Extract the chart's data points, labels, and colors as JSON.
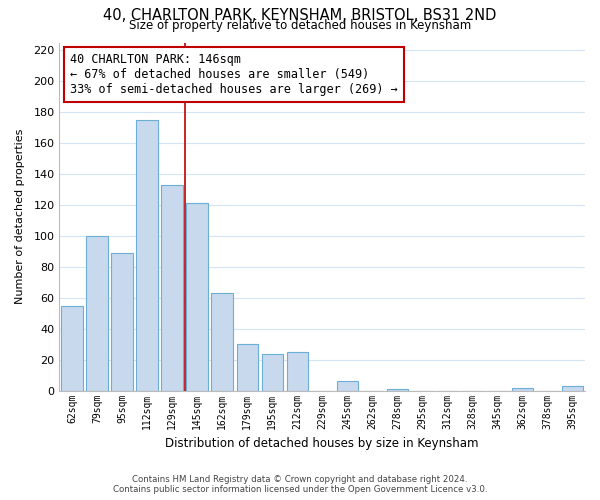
{
  "title_line1": "40, CHARLTON PARK, KEYNSHAM, BRISTOL, BS31 2ND",
  "title_line2": "Size of property relative to detached houses in Keynsham",
  "xlabel": "Distribution of detached houses by size in Keynsham",
  "ylabel": "Number of detached properties",
  "categories": [
    "62sqm",
    "79sqm",
    "95sqm",
    "112sqm",
    "129sqm",
    "145sqm",
    "162sqm",
    "179sqm",
    "195sqm",
    "212sqm",
    "229sqm",
    "245sqm",
    "262sqm",
    "278sqm",
    "295sqm",
    "312sqm",
    "328sqm",
    "345sqm",
    "362sqm",
    "378sqm",
    "395sqm"
  ],
  "values": [
    55,
    100,
    89,
    175,
    133,
    121,
    63,
    30,
    24,
    25,
    0,
    6,
    0,
    1,
    0,
    0,
    0,
    0,
    2,
    0,
    3
  ],
  "bar_color": "#c8d9ee",
  "bar_edge_color": "#6baed6",
  "annotation_title": "40 CHARLTON PARK: 146sqm",
  "annotation_line1": "← 67% of detached houses are smaller (549)",
  "annotation_line2": "33% of semi-detached houses are larger (269) →",
  "marker_color": "#c00000",
  "marker_line_index": 4.5,
  "ylim": [
    0,
    225
  ],
  "yticks": [
    0,
    20,
    40,
    60,
    80,
    100,
    120,
    140,
    160,
    180,
    200,
    220
  ],
  "footer_line1": "Contains HM Land Registry data © Crown copyright and database right 2024.",
  "footer_line2": "Contains public sector information licensed under the Open Government Licence v3.0.",
  "bg_color": "#ffffff",
  "grid_color": "#d4e4f4"
}
